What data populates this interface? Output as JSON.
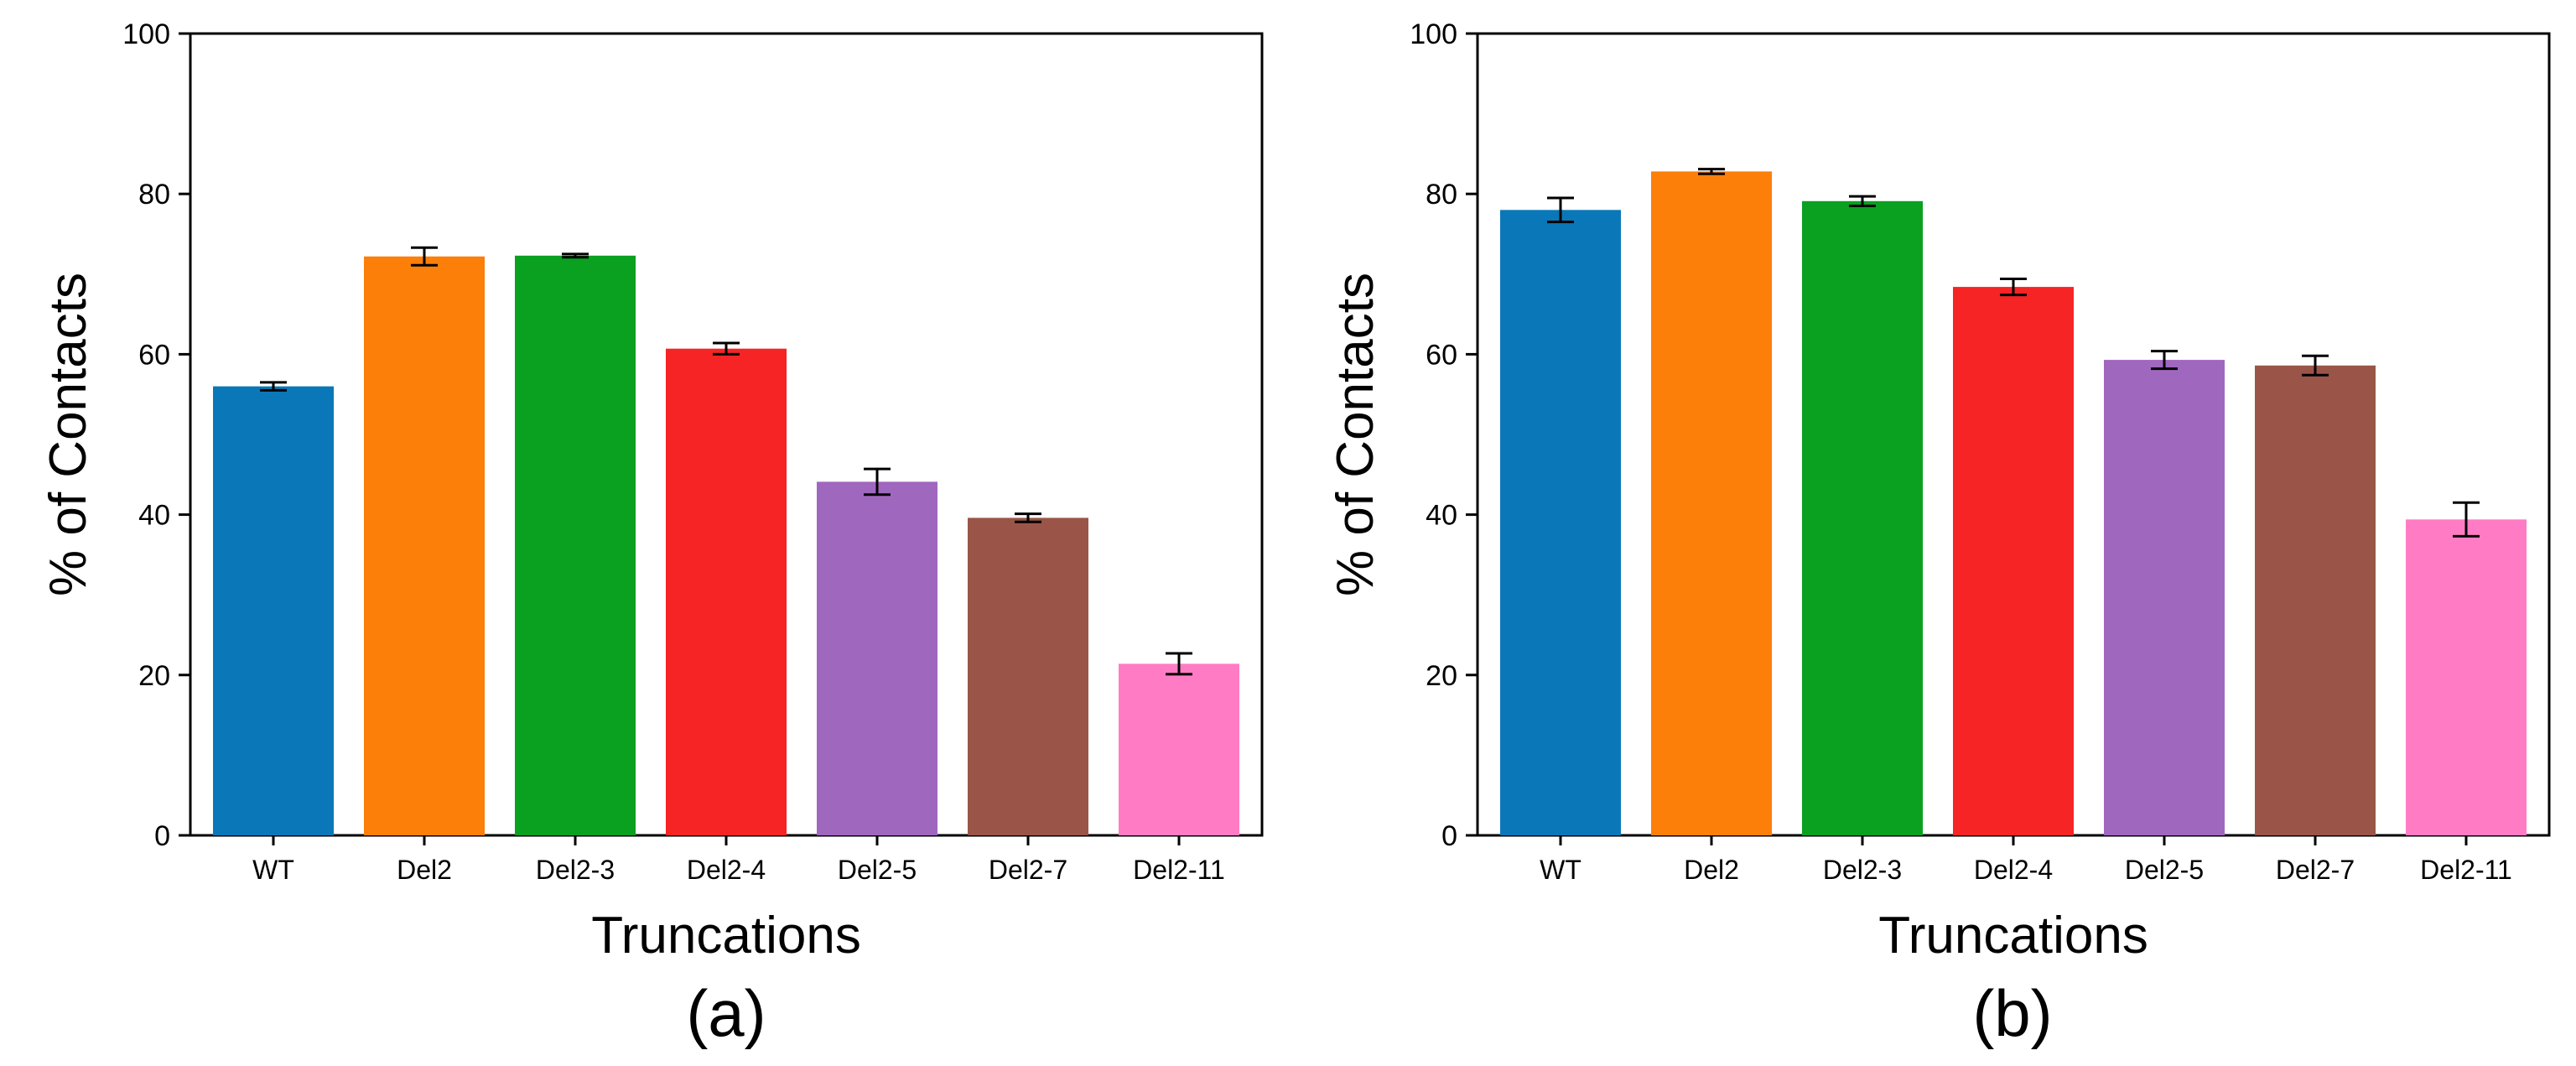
{
  "chart_data": [
    {
      "type": "bar",
      "panel_label": "(a)",
      "title": "",
      "xlabel": "Truncations",
      "ylabel": "% of Contacts",
      "ylim": [
        0,
        100
      ],
      "yticks": [
        0,
        20,
        40,
        60,
        80,
        100
      ],
      "grid": false,
      "categories": [
        "WT",
        "Del2",
        "Del2-3",
        "Del2-4",
        "Del2-5",
        "Del2-7",
        "Del2-11"
      ],
      "values": [
        56,
        72.2,
        72.3,
        60.7,
        44.1,
        39.6,
        21.4
      ],
      "errors": [
        0.5,
        1.1,
        0.2,
        0.7,
        1.6,
        0.5,
        1.3
      ],
      "colors": [
        "#0a78b8",
        "#fc7f0a",
        "#0aa020",
        "#f62424",
        "#a067bf",
        "#9a5548",
        "#ff7cc5"
      ]
    },
    {
      "type": "bar",
      "panel_label": "(b)",
      "title": "",
      "xlabel": "Truncations",
      "ylabel": "% of Contacts",
      "ylim": [
        0,
        100
      ],
      "yticks": [
        0,
        20,
        40,
        60,
        80,
        100
      ],
      "grid": false,
      "categories": [
        "WT",
        "Del2",
        "Del2-3",
        "Del2-4",
        "Del2-5",
        "Del2-7",
        "Del2-11"
      ],
      "values": [
        78,
        82.8,
        79.1,
        68.4,
        59.3,
        58.6,
        39.4
      ],
      "errors": [
        1.5,
        0.3,
        0.6,
        1.0,
        1.1,
        1.2,
        2.1
      ],
      "colors": [
        "#0a78b8",
        "#fc7f0a",
        "#0aa020",
        "#f62424",
        "#a067bf",
        "#9a5548",
        "#ff7cc5"
      ]
    }
  ]
}
